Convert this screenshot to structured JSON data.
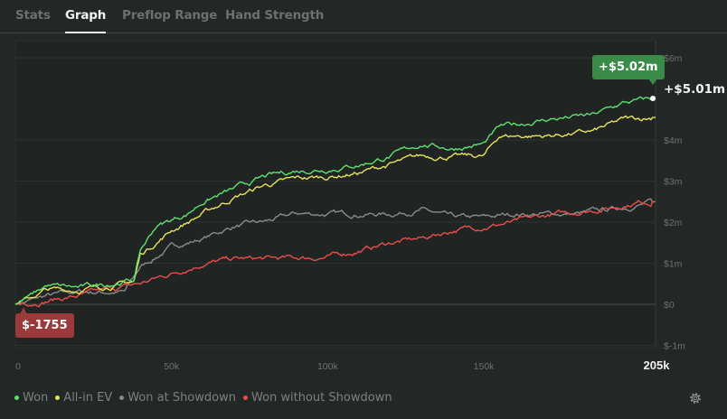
{
  "tabs": [
    {
      "label": "Stats"
    },
    {
      "label": "Graph"
    },
    {
      "label": "Preflop Range"
    },
    {
      "label": "Hand Strength"
    }
  ],
  "active_tab": "Graph",
  "badges": {
    "max": "+$5.02m",
    "min": "$-1755",
    "end": "+$5.01m"
  },
  "legend": [
    {
      "label": "Won",
      "color": "#5ee06f"
    },
    {
      "label": "All-in EV",
      "color": "#e8e25a"
    },
    {
      "label": "Won at Showdown",
      "color": "#8a8a8a"
    },
    {
      "label": "Won without Showdown",
      "color": "#ec4c4c"
    }
  ],
  "chart_data": {
    "type": "line",
    "xlim": [
      0,
      205
    ],
    "ylim": [
      -1,
      6
    ],
    "x_ticks": [
      "0",
      "50k",
      "100k",
      "150k",
      "205k"
    ],
    "x_tick_values": [
      0,
      50,
      100,
      150,
      205
    ],
    "y_ticks": [
      "$6m",
      "$4m",
      "$3m",
      "$2m",
      "$1m",
      "$0",
      "$-1m"
    ],
    "y_tick_values": [
      6,
      4,
      3,
      2,
      1,
      0,
      -1
    ],
    "x_unit": "thousand hands",
    "y_unit": "million $",
    "series": [
      {
        "name": "Won",
        "color": "#5ee06f",
        "points": [
          [
            0,
            0
          ],
          [
            5,
            0.2
          ],
          [
            10,
            0.45
          ],
          [
            20,
            0.4
          ],
          [
            30,
            0.5
          ],
          [
            38,
            0.6
          ],
          [
            40,
            1.3
          ],
          [
            45,
            1.9
          ],
          [
            55,
            2.2
          ],
          [
            60,
            2.5
          ],
          [
            70,
            2.8
          ],
          [
            80,
            3.1
          ],
          [
            90,
            3.25
          ],
          [
            100,
            3.3
          ],
          [
            110,
            3.4
          ],
          [
            120,
            3.6
          ],
          [
            130,
            3.9
          ],
          [
            140,
            3.8
          ],
          [
            150,
            3.9
          ],
          [
            155,
            4.3
          ],
          [
            170,
            4.5
          ],
          [
            185,
            4.6
          ],
          [
            195,
            4.9
          ],
          [
            205,
            5.01
          ]
        ]
      },
      {
        "name": "All-in EV",
        "color": "#e8e25a",
        "points": [
          [
            0,
            0
          ],
          [
            5,
            0.15
          ],
          [
            10,
            0.35
          ],
          [
            20,
            0.35
          ],
          [
            30,
            0.45
          ],
          [
            38,
            0.55
          ],
          [
            40,
            1.2
          ],
          [
            50,
            1.8
          ],
          [
            60,
            2.2
          ],
          [
            70,
            2.6
          ],
          [
            80,
            2.9
          ],
          [
            90,
            3.05
          ],
          [
            100,
            3.1
          ],
          [
            110,
            3.2
          ],
          [
            120,
            3.4
          ],
          [
            130,
            3.6
          ],
          [
            140,
            3.6
          ],
          [
            150,
            3.6
          ],
          [
            155,
            4.1
          ],
          [
            170,
            4.1
          ],
          [
            185,
            4.2
          ],
          [
            195,
            4.5
          ],
          [
            205,
            4.55
          ]
        ]
      },
      {
        "name": "Won at Showdown",
        "color": "#8a8a8a",
        "points": [
          [
            0,
            0
          ],
          [
            10,
            0.2
          ],
          [
            20,
            0.3
          ],
          [
            35,
            0.3
          ],
          [
            40,
            0.9
          ],
          [
            50,
            1.4
          ],
          [
            60,
            1.6
          ],
          [
            70,
            1.9
          ],
          [
            80,
            2.0
          ],
          [
            90,
            2.2
          ],
          [
            100,
            2.2
          ],
          [
            110,
            2.2
          ],
          [
            120,
            2.2
          ],
          [
            130,
            2.3
          ],
          [
            140,
            2.1
          ],
          [
            150,
            2.1
          ],
          [
            160,
            2.2
          ],
          [
            170,
            2.2
          ],
          [
            180,
            2.2
          ],
          [
            190,
            2.3
          ],
          [
            205,
            2.5
          ]
        ]
      },
      {
        "name": "Won without Showdown",
        "color": "#ec4c4c",
        "points": [
          [
            0,
            0
          ],
          [
            10,
            0.1
          ],
          [
            20,
            0.2
          ],
          [
            30,
            0.35
          ],
          [
            40,
            0.5
          ],
          [
            50,
            0.75
          ],
          [
            60,
            1.0
          ],
          [
            70,
            1.1
          ],
          [
            80,
            1.1
          ],
          [
            100,
            1.15
          ],
          [
            110,
            1.3
          ],
          [
            120,
            1.5
          ],
          [
            130,
            1.6
          ],
          [
            140,
            1.8
          ],
          [
            150,
            1.9
          ],
          [
            160,
            2.0
          ],
          [
            170,
            2.15
          ],
          [
            180,
            2.25
          ],
          [
            190,
            2.35
          ],
          [
            200,
            2.5
          ],
          [
            205,
            2.5
          ]
        ]
      }
    ]
  }
}
